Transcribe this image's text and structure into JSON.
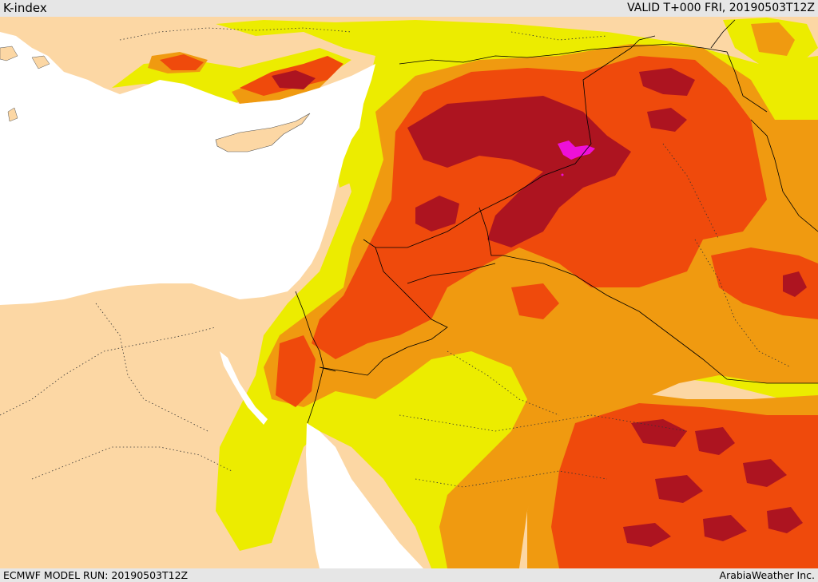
{
  "header": {
    "title": "K-index",
    "valid_time": "VALID T+000 FRI, 20190503T12Z"
  },
  "footer": {
    "model_run": "ECMWF MODEL RUN: 20190503T12Z",
    "credit": "ArabiaWeather Inc."
  },
  "map": {
    "field": "K-index",
    "colors": {
      "land_low": "#fcd7a4",
      "level_1": "#ecec00",
      "level_2": "#f09a10",
      "level_3": "#ef4a0c",
      "level_4": "#ad1420",
      "level_5": "#ee10d8",
      "sea": "#ffffff",
      "borders": "#000000"
    }
  }
}
